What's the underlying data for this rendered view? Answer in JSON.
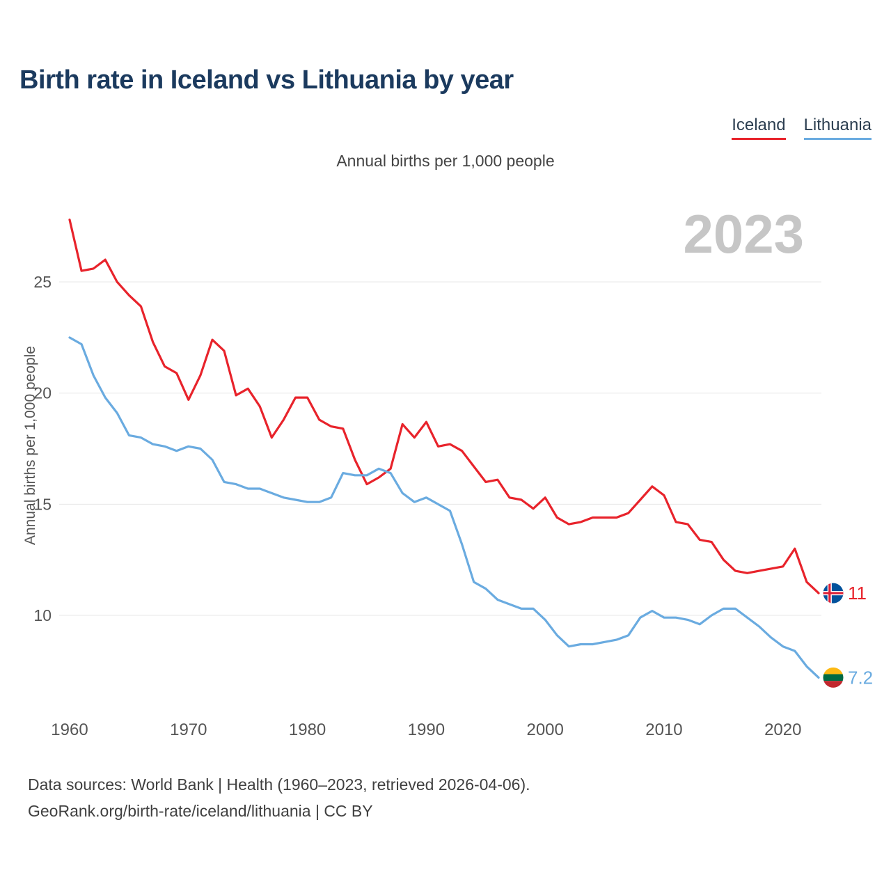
{
  "header": {
    "title": "Birth rate in Iceland vs Lithuania by year"
  },
  "legend": {
    "items": [
      {
        "label": "Iceland",
        "color": "#e8232b"
      },
      {
        "label": "Lithuania",
        "color": "#6aabe0"
      }
    ]
  },
  "watermark": "2023",
  "chart_data": {
    "type": "line",
    "title": "Annual births per 1,000 people",
    "ylabel": "Annual births per 1,000 people",
    "grid": "horizontal",
    "legend_position": "top-right",
    "xticks": [
      1960,
      1970,
      1980,
      1990,
      2000,
      2010,
      2020
    ],
    "yticks": [
      10,
      15,
      20,
      25
    ],
    "ylim": [
      6.5,
      28.6
    ],
    "x": [
      1960,
      1961,
      1962,
      1963,
      1964,
      1965,
      1966,
      1967,
      1968,
      1969,
      1970,
      1971,
      1972,
      1973,
      1974,
      1975,
      1976,
      1977,
      1978,
      1979,
      1980,
      1981,
      1982,
      1983,
      1984,
      1985,
      1986,
      1987,
      1988,
      1989,
      1990,
      1991,
      1992,
      1993,
      1994,
      1995,
      1996,
      1997,
      1998,
      1999,
      2000,
      2001,
      2002,
      2003,
      2004,
      2005,
      2006,
      2007,
      2008,
      2009,
      2010,
      2011,
      2012,
      2013,
      2014,
      2015,
      2016,
      2017,
      2018,
      2019,
      2020,
      2021,
      2022,
      2023
    ],
    "series": [
      {
        "name": "Iceland",
        "color": "#e8232b",
        "values": [
          27.8,
          25.5,
          25.6,
          26.0,
          25.0,
          24.4,
          23.9,
          22.3,
          21.2,
          20.9,
          19.7,
          20.8,
          22.4,
          21.9,
          19.9,
          20.2,
          19.4,
          18.0,
          18.8,
          19.8,
          19.8,
          18.8,
          18.5,
          18.4,
          17.0,
          15.9,
          16.2,
          16.6,
          18.6,
          18.0,
          18.7,
          17.6,
          17.7,
          17.4,
          16.7,
          16.0,
          16.1,
          15.3,
          15.2,
          14.8,
          15.3,
          14.4,
          14.1,
          14.2,
          14.4,
          14.4,
          14.4,
          14.6,
          15.2,
          15.8,
          15.4,
          14.2,
          14.1,
          13.4,
          13.3,
          12.5,
          12.0,
          11.9,
          12.0,
          12.1,
          12.2,
          13.0,
          11.5,
          11.0
        ]
      },
      {
        "name": "Lithuania",
        "color": "#6aabe0",
        "values": [
          22.5,
          22.2,
          20.8,
          19.8,
          19.1,
          18.1,
          18.0,
          17.7,
          17.6,
          17.4,
          17.6,
          17.5,
          17.0,
          16.0,
          15.9,
          15.7,
          15.7,
          15.5,
          15.3,
          15.2,
          15.1,
          15.1,
          15.3,
          16.4,
          16.3,
          16.3,
          16.6,
          16.4,
          15.5,
          15.1,
          15.3,
          15.0,
          14.7,
          13.2,
          11.5,
          11.2,
          10.7,
          10.5,
          10.3,
          10.3,
          9.8,
          9.1,
          8.6,
          8.7,
          8.7,
          8.8,
          8.9,
          9.1,
          9.9,
          10.2,
          9.9,
          9.9,
          9.8,
          9.6,
          10.0,
          10.3,
          10.3,
          9.9,
          9.5,
          9.0,
          8.6,
          8.4,
          7.7,
          7.2
        ]
      }
    ],
    "end_labels": [
      {
        "series": "Iceland",
        "value": "11",
        "flag_icon": "iceland-flag-icon"
      },
      {
        "series": "Lithuania",
        "value": "7.2",
        "flag_icon": "lithuania-flag-icon"
      }
    ]
  },
  "footer": {
    "line1": "Data sources: World Bank | Health (1960–2023, retrieved 2026-04-06).",
    "line2": "GeoRank.org/birth-rate/iceland/lithuania | CC BY"
  }
}
